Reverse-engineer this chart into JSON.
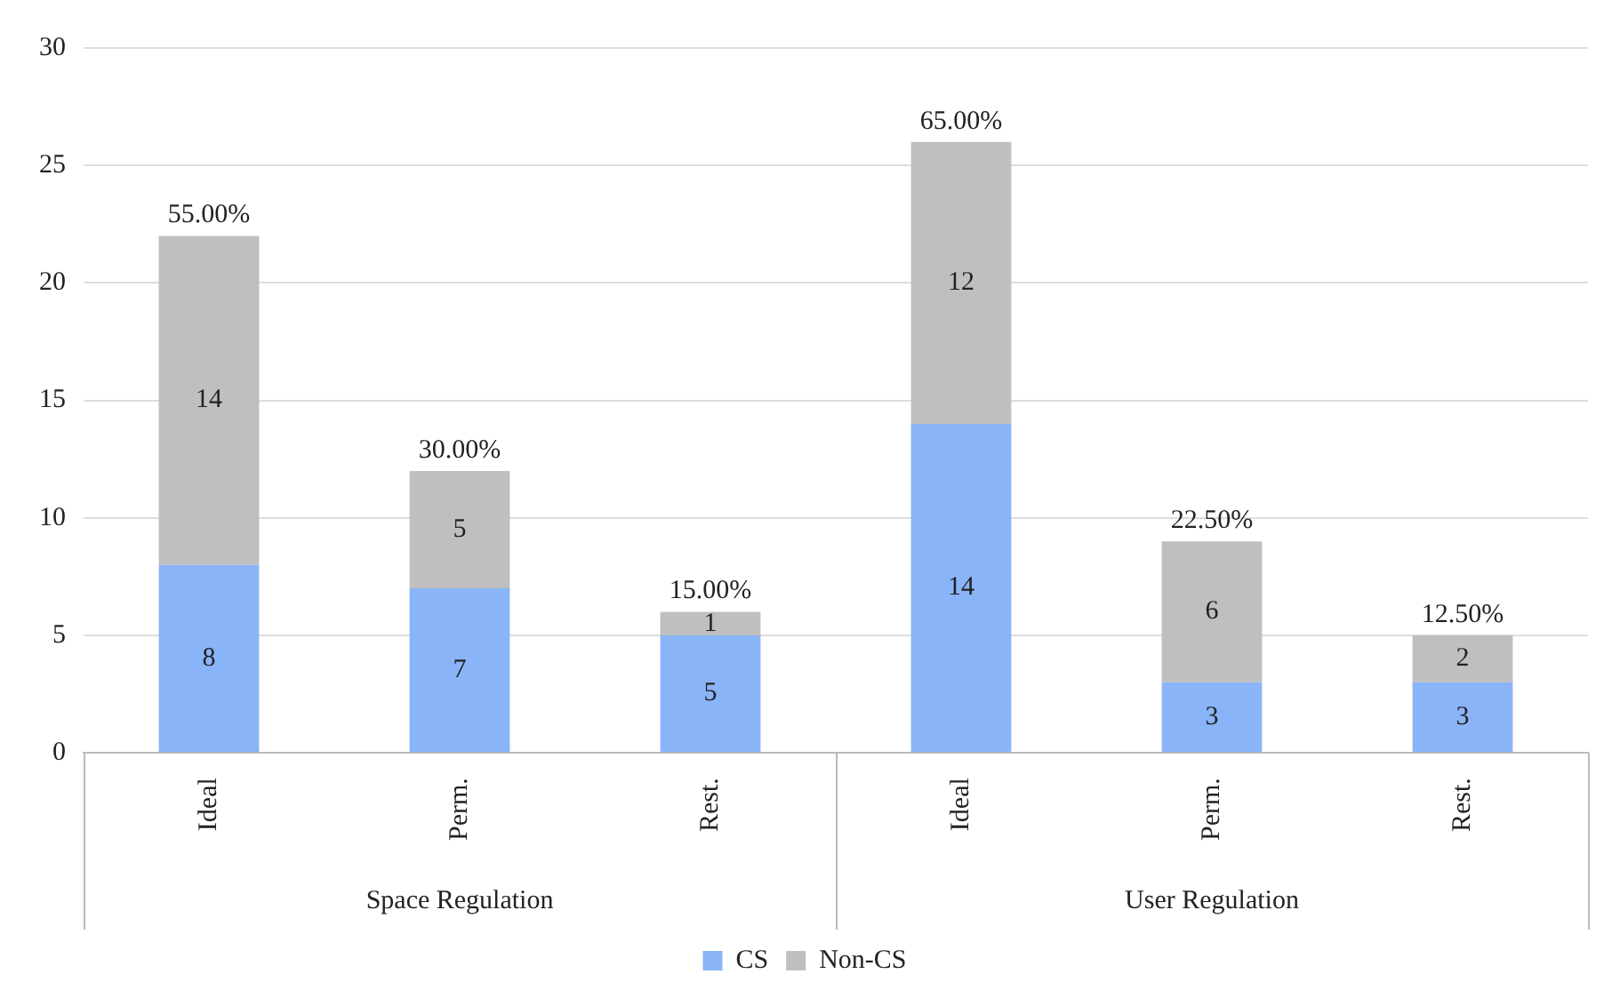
{
  "chart_data": {
    "type": "bar",
    "stacked": true,
    "categories": [
      "Ideal",
      "Perm.",
      "Rest.",
      "Ideal",
      "Perm.",
      "Rest."
    ],
    "series": [
      {
        "name": "CS",
        "color": "#8ab4f8",
        "values": [
          8,
          7,
          5,
          14,
          3,
          3
        ]
      },
      {
        "name": "Non-CS",
        "color": "#bfbfbf",
        "values": [
          14,
          5,
          1,
          12,
          6,
          2
        ]
      }
    ],
    "annotations": [
      "Space Regulation",
      "User Regulation",
      {
        "text": "55.00%",
        "y": 22
      },
      {
        "text": "30.00%",
        "y": 12
      },
      {
        "text": "15.00%",
        "y": 6
      },
      {
        "text": "65.00%",
        "y": 26
      },
      {
        "text": "22.50%",
        "y": 9
      },
      {
        "text": "12.50%",
        "y": 5
      }
    ],
    "data_labels": true,
    "ylim": [
      0,
      30
    ],
    "yticks": [
      0,
      5,
      10,
      15,
      20,
      25,
      30
    ],
    "grid": "y",
    "legend": "bottom"
  }
}
